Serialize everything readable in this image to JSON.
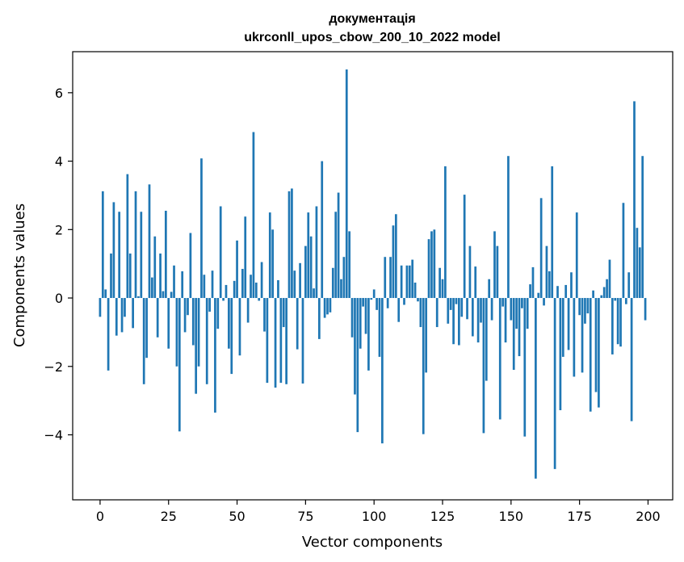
{
  "chart_data": {
    "type": "bar",
    "title_line1": "документація",
    "title_line2": "ukrconll_upos_cbow_200_10_2022 model",
    "xlabel": "Vector components",
    "ylabel": "Components values",
    "xlim": [
      -10,
      209
    ],
    "ylim": [
      -5.9,
      7.2
    ],
    "xticks": [
      0,
      25,
      50,
      75,
      100,
      125,
      150,
      175,
      200
    ],
    "xtick_labels": [
      "0",
      "25",
      "50",
      "75",
      "100",
      "125",
      "150",
      "175",
      "200"
    ],
    "yticks": [
      -4,
      -2,
      0,
      2,
      4,
      6
    ],
    "ytick_labels": [
      "−4",
      "−2",
      "0",
      "2",
      "4",
      "6"
    ],
    "bar_color": "#1f77b4",
    "grid": false,
    "values": [
      -0.55,
      3.12,
      0.25,
      -2.12,
      1.3,
      2.8,
      -1.1,
      2.52,
      -1.0,
      -0.55,
      3.62,
      1.3,
      -0.88,
      3.12,
      0.05,
      2.52,
      -2.52,
      -1.75,
      3.32,
      0.6,
      1.8,
      -1.15,
      1.3,
      0.2,
      2.55,
      -1.48,
      0.18,
      0.95,
      -2.0,
      -3.9,
      0.78,
      -1.0,
      -0.5,
      1.9,
      -1.38,
      -2.8,
      -2.0,
      4.08,
      0.68,
      -2.52,
      -0.4,
      0.8,
      -3.35,
      -0.9,
      2.68,
      -0.08,
      0.38,
      -1.48,
      -2.22,
      0.5,
      1.68,
      -1.68,
      0.85,
      2.38,
      -0.72,
      0.68,
      4.85,
      0.45,
      -0.08,
      1.05,
      -0.98,
      -2.48,
      2.5,
      2.0,
      -2.62,
      0.52,
      -2.48,
      -0.85,
      -2.52,
      3.12,
      3.2,
      0.8,
      -1.5,
      1.02,
      -2.5,
      1.52,
      2.5,
      1.8,
      0.28,
      2.68,
      -1.2,
      4.0,
      -0.58,
      -0.48,
      -0.42,
      0.88,
      2.52,
      3.08,
      0.55,
      1.2,
      6.68,
      1.95,
      -1.15,
      -2.82,
      -3.92,
      -1.48,
      -0.25,
      -1.05,
      -2.12,
      -0.05,
      0.25,
      -0.35,
      -1.72,
      -4.25,
      1.2,
      -0.3,
      1.2,
      2.12,
      2.45,
      -0.7,
      0.95,
      -0.2,
      0.95,
      0.95,
      1.12,
      0.45,
      -0.1,
      -0.85,
      -3.98,
      -2.18,
      1.72,
      1.95,
      2.0,
      -0.85,
      0.88,
      0.55,
      3.85,
      -0.75,
      -0.35,
      -1.35,
      -0.18,
      -1.38,
      -0.55,
      3.02,
      -0.62,
      1.52,
      -1.12,
      0.92,
      -1.3,
      -0.72,
      -3.95,
      -2.42,
      0.55,
      -0.65,
      1.95,
      1.52,
      -3.55,
      -0.25,
      -1.3,
      4.15,
      -0.65,
      -2.1,
      -0.9,
      -1.7,
      -0.3,
      -4.05,
      -0.9,
      0.4,
      0.9,
      -5.28,
      0.15,
      2.92,
      -0.22,
      1.52,
      0.78,
      3.85,
      -5.0,
      0.35,
      -3.28,
      -1.72,
      0.38,
      -1.52,
      0.75,
      -2.3,
      2.5,
      -0.5,
      -2.18,
      -0.75,
      -0.45,
      -3.32,
      0.22,
      -2.75,
      -3.2,
      0.08,
      0.32,
      0.55,
      1.12,
      -1.65,
      -0.08,
      -1.35,
      -1.42,
      2.78,
      -0.18,
      0.75,
      -3.6,
      5.75,
      2.05,
      1.48,
      4.15,
      -0.65
    ]
  }
}
